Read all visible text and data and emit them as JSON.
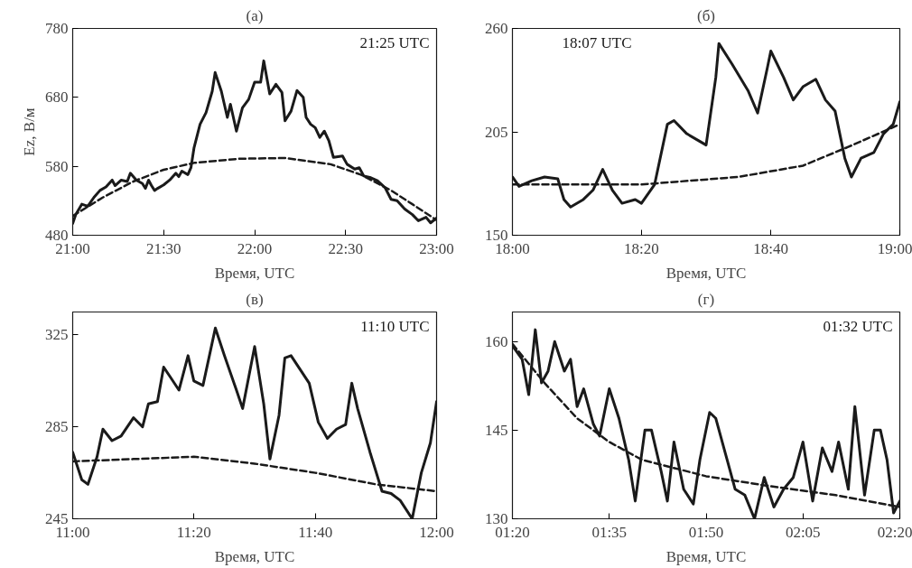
{
  "chart_data": [
    {
      "type": "line",
      "title": "(a)",
      "xlabel": "Время, UTC",
      "ylabel": "Ez, В/м",
      "annotations": [
        "21:25 UTC"
      ],
      "xlim": [
        21,
        23
      ],
      "ylim": [
        480,
        780
      ],
      "xticks": [
        {
          "value": 21,
          "label": "21:00"
        },
        {
          "value": 21.5,
          "label": "21:30"
        },
        {
          "value": 22,
          "label": "22:00"
        },
        {
          "value": 22.5,
          "label": "22:30"
        },
        {
          "value": 23,
          "label": "23:00"
        }
      ],
      "yticks": [
        480,
        580,
        680,
        780
      ],
      "grid": false,
      "series": [
        {
          "color": "#1a1a1a",
          "line_style": "solid",
          "x": [
            21.0,
            21.017,
            21.05,
            21.083,
            21.117,
            21.15,
            21.183,
            21.217,
            21.233,
            21.267,
            21.3,
            21.317,
            21.35,
            21.383,
            21.4,
            21.417,
            21.433,
            21.45,
            21.467,
            21.5,
            21.533,
            21.567,
            21.583,
            21.6,
            21.633,
            21.65,
            21.667,
            21.7,
            21.733,
            21.767,
            21.783,
            21.817,
            21.85,
            21.867,
            21.9,
            21.933,
            21.967,
            22.0,
            22.033,
            22.05,
            22.083,
            22.117,
            22.15,
            22.167,
            22.2,
            22.233,
            22.267,
            22.283,
            22.308,
            22.333,
            22.358,
            22.383,
            22.408,
            22.433,
            22.483,
            22.508,
            22.55,
            22.575,
            22.6,
            22.633,
            22.675,
            22.717,
            22.75,
            22.783,
            22.825,
            22.867,
            22.9,
            22.942,
            22.967,
            23.0
          ],
          "values": [
            497,
            510,
            525,
            522,
            535,
            545,
            550,
            560,
            552,
            560,
            558,
            570,
            560,
            555,
            548,
            560,
            552,
            545,
            548,
            553,
            560,
            570,
            565,
            573,
            568,
            578,
            607,
            641,
            658,
            689,
            716,
            689,
            651,
            670,
            631,
            665,
            677,
            702,
            702,
            733,
            685,
            699,
            687,
            646,
            660,
            690,
            680,
            651,
            641,
            636,
            622,
            631,
            617,
            593,
            595,
            583,
            576,
            578,
            566,
            564,
            559,
            549,
            532,
            530,
            518,
            510,
            501,
            506,
            498,
            505
          ]
        },
        {
          "color": "#1a1a1a",
          "line_style": "dashed",
          "x": [
            21.0,
            21.167,
            21.333,
            21.5,
            21.667,
            21.917,
            22.167,
            22.417,
            22.583,
            22.75,
            22.867,
            23.0
          ],
          "values": [
            508,
            535,
            558,
            575,
            585,
            591,
            592,
            583,
            568,
            545,
            525,
            502
          ]
        }
      ]
    },
    {
      "type": "line",
      "title": "(б)",
      "xlabel": "Время, UTC",
      "annotations": [
        "18:07 UTC"
      ],
      "xlim": [
        18,
        19
      ],
      "ylim": [
        150,
        260
      ],
      "xticks": [
        {
          "value": 18,
          "label": "18:00"
        },
        {
          "value": 18.333,
          "label": "18:20"
        },
        {
          "value": 18.667,
          "label": "18:40"
        },
        {
          "value": 19,
          "label": "19:00"
        }
      ],
      "yticks": [
        150,
        205,
        260
      ],
      "grid": false,
      "series": [
        {
          "color": "#1a1a1a",
          "line_style": "solid",
          "x": [
            18.0,
            18.017,
            18.05,
            18.083,
            18.117,
            18.133,
            18.15,
            18.183,
            18.208,
            18.233,
            18.258,
            18.283,
            18.317,
            18.333,
            18.367,
            18.4,
            18.417,
            18.45,
            18.483,
            18.5,
            18.525,
            18.533,
            18.567,
            18.608,
            18.633,
            18.658,
            18.667,
            18.7,
            18.725,
            18.75,
            18.783,
            18.808,
            18.833,
            18.858,
            18.875,
            18.9,
            18.933,
            18.958,
            18.983,
            19.0
          ],
          "values": [
            181,
            176,
            179,
            181,
            180,
            169,
            165,
            169,
            174,
            185,
            174,
            167,
            169,
            167,
            177,
            209,
            211,
            204,
            200,
            198,
            234,
            252,
            241,
            227,
            215,
            239,
            248,
            234,
            222,
            229,
            233,
            222,
            216,
            191,
            181,
            191,
            194,
            204,
            209,
            221
          ]
        },
        {
          "color": "#1a1a1a",
          "line_style": "dashed",
          "x": [
            18.0,
            18.333,
            18.583,
            18.75,
            18.867,
            19.0
          ],
          "values": [
            177,
            177,
            181,
            187,
            197,
            209
          ]
        }
      ]
    },
    {
      "type": "line",
      "title": "(в)",
      "xlabel": "Время, UTC",
      "annotations": [
        "11:10 UTC"
      ],
      "xlim": [
        11,
        12
      ],
      "ylim": [
        245,
        335
      ],
      "xticks": [
        {
          "value": 11,
          "label": "11:00"
        },
        {
          "value": 11.333,
          "label": "11:20"
        },
        {
          "value": 11.667,
          "label": "11:40"
        },
        {
          "value": 12,
          "label": "12:00"
        }
      ],
      "yticks": [
        245,
        285,
        325
      ],
      "grid": false,
      "series": [
        {
          "color": "#1a1a1a",
          "line_style": "solid",
          "x": [
            11.0,
            11.025,
            11.042,
            11.067,
            11.083,
            11.108,
            11.133,
            11.167,
            11.192,
            11.208,
            11.233,
            11.25,
            11.267,
            11.292,
            11.317,
            11.333,
            11.358,
            11.392,
            11.417,
            11.45,
            11.467,
            11.5,
            11.525,
            11.542,
            11.567,
            11.583,
            11.6,
            11.625,
            11.65,
            11.675,
            11.7,
            11.725,
            11.75,
            11.767,
            11.783,
            11.817,
            11.85,
            11.875,
            11.9,
            11.933,
            11.958,
            11.983,
            12.0
          ],
          "values": [
            274,
            262,
            260,
            272,
            284,
            279,
            281,
            289,
            285,
            295,
            296,
            311,
            307,
            301,
            316,
            305,
            303,
            328,
            316,
            301,
            293,
            320,
            295,
            271,
            290,
            315,
            316,
            310,
            304,
            287,
            280,
            284,
            286,
            304,
            293,
            274,
            257,
            256,
            253,
            245,
            265,
            278,
            296
          ]
        },
        {
          "color": "#1a1a1a",
          "line_style": "dashed",
          "x": [
            11.0,
            11.167,
            11.333,
            11.5,
            11.667,
            11.833,
            12.0
          ],
          "values": [
            270,
            271,
            272,
            269,
            265,
            260,
            257
          ]
        }
      ]
    },
    {
      "type": "line",
      "title": "(г)",
      "xlabel": "Время, UTC",
      "annotations": [
        "01:32 UTC"
      ],
      "xlim": [
        1.333,
        2.333
      ],
      "ylim": [
        130,
        165
      ],
      "xticks": [
        {
          "value": 1.333,
          "label": "01:20"
        },
        {
          "value": 1.583,
          "label": "01:35"
        },
        {
          "value": 1.833,
          "label": "01:50"
        },
        {
          "value": 2.083,
          "label": "02:05"
        },
        {
          "value": 2.333,
          "label": "02:20"
        }
      ],
      "yticks": [
        130,
        145,
        160
      ],
      "grid": false,
      "series": [
        {
          "color": "#1a1a1a",
          "line_style": "solid",
          "x": [
            1.333,
            1.358,
            1.375,
            1.392,
            1.408,
            1.425,
            1.442,
            1.467,
            1.483,
            1.5,
            1.517,
            1.542,
            1.558,
            1.583,
            1.608,
            1.633,
            1.65,
            1.675,
            1.692,
            1.717,
            1.733,
            1.75,
            1.775,
            1.8,
            1.817,
            1.842,
            1.858,
            1.883,
            1.908,
            1.933,
            1.958,
            1.983,
            2.008,
            2.033,
            2.058,
            2.083,
            2.108,
            2.133,
            2.158,
            2.175,
            2.2,
            2.217,
            2.242,
            2.267,
            2.283,
            2.3,
            2.317,
            2.333
          ],
          "values": [
            159.3,
            157,
            151,
            162,
            153,
            155,
            160,
            155,
            157,
            149,
            152,
            146,
            144,
            152,
            147,
            140,
            133,
            145,
            145,
            138,
            133,
            143,
            135,
            132.5,
            140,
            148,
            147,
            141,
            135,
            134,
            130,
            137,
            132,
            135,
            137,
            143,
            133,
            142,
            138,
            143,
            135,
            149,
            134,
            145,
            145,
            140,
            131,
            133
          ]
        },
        {
          "color": "#1a1a1a",
          "line_style": "dashed",
          "x": [
            1.333,
            1.417,
            1.5,
            1.583,
            1.667,
            1.833,
            2.0,
            2.167,
            2.333
          ],
          "values": [
            159.6,
            152.9,
            147,
            143,
            140,
            137.2,
            135.5,
            134,
            132
          ]
        }
      ]
    }
  ]
}
